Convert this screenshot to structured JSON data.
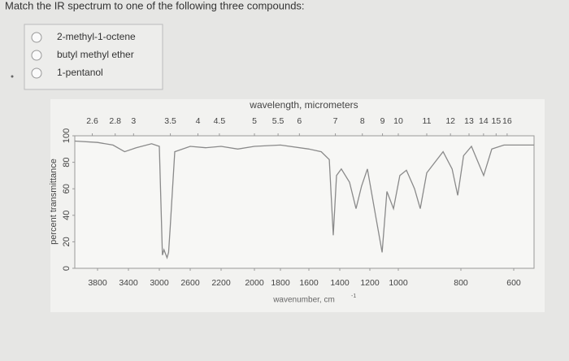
{
  "question": "Match the IR spectrum to one of the following three compounds:",
  "options": [
    "2-methyl-1-octene",
    "butyl methyl ether",
    "1-pentanol"
  ],
  "chart_data": {
    "type": "line",
    "color": "#8a8a8a",
    "x2label": "wavelength, micrometers",
    "ylabel": "percent transmittance",
    "xlabel": "wavenumber, cm",
    "xlabel_superscript": "-1",
    "x2ticks": [
      2.6,
      2.8,
      3,
      3.5,
      4,
      4.5,
      5,
      5.5,
      6,
      7,
      8,
      9,
      10,
      11,
      12,
      13,
      14,
      15,
      16
    ],
    "xlim": [
      4000,
      550
    ],
    "xticks": [
      3800,
      3400,
      3000,
      2600,
      2200,
      2000,
      1800,
      1600,
      1400,
      1200,
      1000,
      800,
      600
    ],
    "ylim": [
      0,
      100
    ],
    "yticks": [
      0,
      20,
      40,
      60,
      80,
      100
    ],
    "x": [
      4000,
      3800,
      3600,
      3450,
      3300,
      3100,
      3000,
      2960,
      2940,
      2900,
      2880,
      2860,
      2800,
      2600,
      2400,
      2200,
      2100,
      2000,
      1800,
      1600,
      1520,
      1468,
      1442,
      1421,
      1390,
      1335,
      1292,
      1255,
      1216,
      1160,
      1114,
      1080,
      1034,
      995,
      974,
      948,
      930,
      909,
      883,
      857,
      828,
      810,
      790,
      760,
      714,
      683,
      637,
      600,
      550
    ],
    "values": [
      96,
      95,
      93,
      88,
      91,
      94,
      92,
      10,
      14,
      8,
      12,
      30,
      88,
      92,
      91,
      92,
      90,
      92,
      93,
      90,
      88,
      82,
      25,
      70,
      75,
      65,
      45,
      62,
      75,
      40,
      12,
      58,
      45,
      70,
      74,
      60,
      45,
      72,
      80,
      88,
      75,
      55,
      85,
      92,
      70,
      90,
      93,
      93,
      93
    ]
  }
}
